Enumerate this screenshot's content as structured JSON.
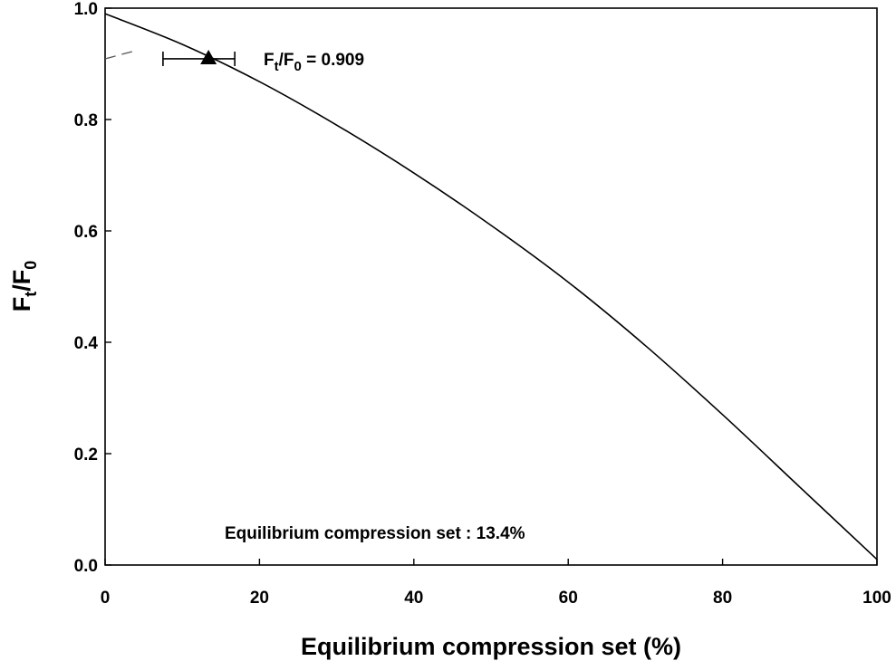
{
  "chart_data": {
    "type": "line",
    "xlabel": "Equilibrium compression set (%)",
    "ylabel_main": "F",
    "ylabel_sub1": "t",
    "ylabel_mid": "/F",
    "ylabel_sub2": "0",
    "xlim": [
      0,
      100
    ],
    "ylim": [
      0,
      1.0
    ],
    "x_ticks": [
      0,
      20,
      40,
      60,
      80,
      100
    ],
    "x_tick_labels": [
      "0",
      "20",
      "40",
      "60",
      "80",
      "100"
    ],
    "y_ticks": [
      0,
      0.2,
      0.4,
      0.6,
      0.8,
      1.0
    ],
    "y_tick_labels": [
      "0.0",
      "0.2",
      "0.4",
      "0.6",
      "0.8",
      "1.0"
    ],
    "series": [
      {
        "x": [
          0,
          10,
          20,
          30,
          40,
          50,
          60,
          70,
          80,
          90,
          100
        ],
        "y": [
          0.99,
          0.935,
          0.868,
          0.79,
          0.704,
          0.61,
          0.508,
          0.394,
          0.27,
          0.14,
          0.01
        ]
      }
    ],
    "marker_point": {
      "x": 13.4,
      "y": 0.909,
      "xerr_low": 7.5,
      "xerr_high": 16.8,
      "shape": "triangle"
    },
    "dashed_segment": {
      "x": [
        0,
        3.5
      ],
      "y": [
        0.909,
        0.922
      ]
    },
    "annotations": {
      "point_label_main": "F",
      "point_label_sub1": "t",
      "point_label_mid": "/F",
      "point_label_sub2": "0",
      "point_label_value": " = 0.909",
      "set_label": "Equilibrium compression set : 13.4%"
    },
    "grid": false,
    "color": "#000000"
  }
}
